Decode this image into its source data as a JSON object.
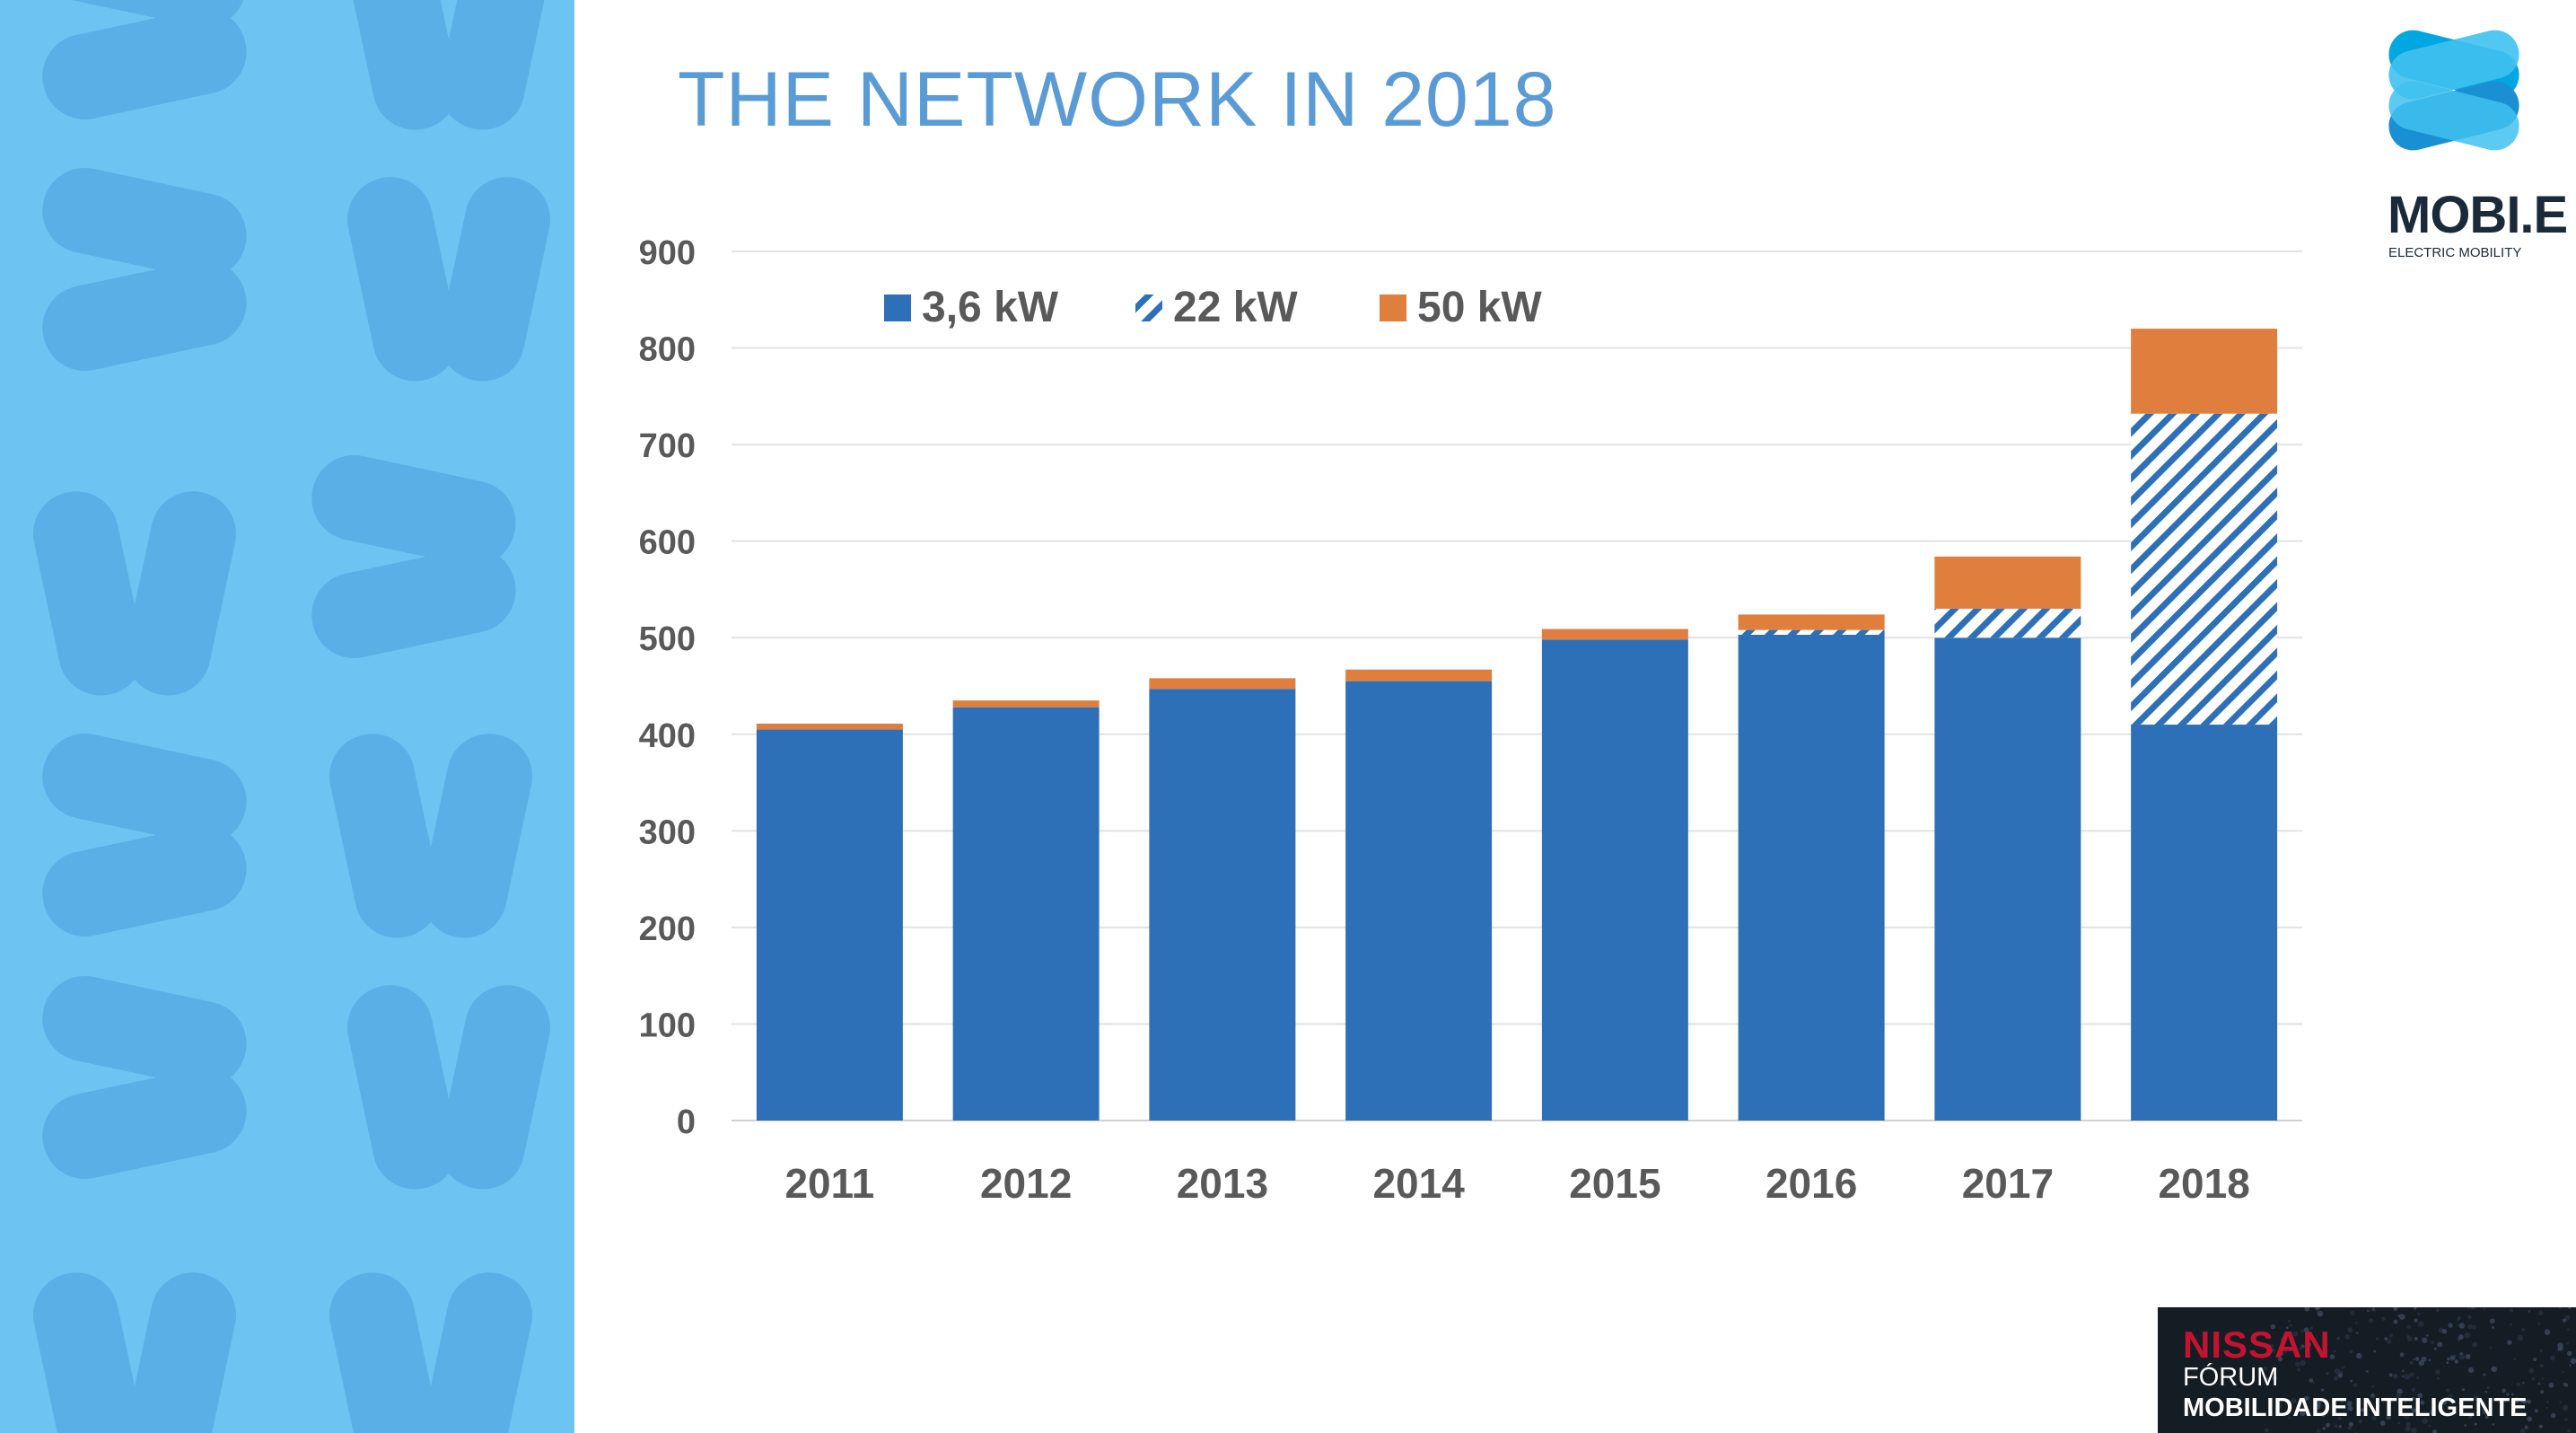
{
  "slide": {
    "title": "THE NETWORK IN 2018",
    "colors": {
      "side_panel": "#6dc3f1",
      "title": "#5b9bd5"
    }
  },
  "logo": {
    "word": "MOBI.E",
    "subtitle": "ELECTRIC MOBILITY",
    "icon": "mobie-logo-icon"
  },
  "sponsor": {
    "brand": "NISSAN",
    "line1": "FÓRUM",
    "line2": "MOBILIDADE INTELIGENTE"
  },
  "chart_data": {
    "type": "bar",
    "stacked": true,
    "categories": [
      "2011",
      "2012",
      "2013",
      "2014",
      "2015",
      "2016",
      "2017",
      "2018"
    ],
    "series": [
      {
        "name": "3,6 kW",
        "color": "#2e70b8",
        "pattern": "solid",
        "values": [
          405,
          428,
          447,
          455,
          498,
          503,
          500,
          410
        ]
      },
      {
        "name": "22 kW",
        "color": "#2e70b8",
        "pattern": "hatched",
        "values": [
          0,
          0,
          0,
          0,
          0,
          5,
          30,
          322
        ]
      },
      {
        "name": "50 kW",
        "color": "#e07f3d",
        "pattern": "solid",
        "values": [
          6,
          7,
          11,
          12,
          11,
          16,
          54,
          88
        ]
      }
    ],
    "ylim": [
      0,
      900
    ],
    "yticks": [
      "0",
      "100",
      "200",
      "300",
      "400",
      "500",
      "600",
      "700",
      "800",
      "900"
    ],
    "grid": true,
    "legend_position": "top-left"
  }
}
